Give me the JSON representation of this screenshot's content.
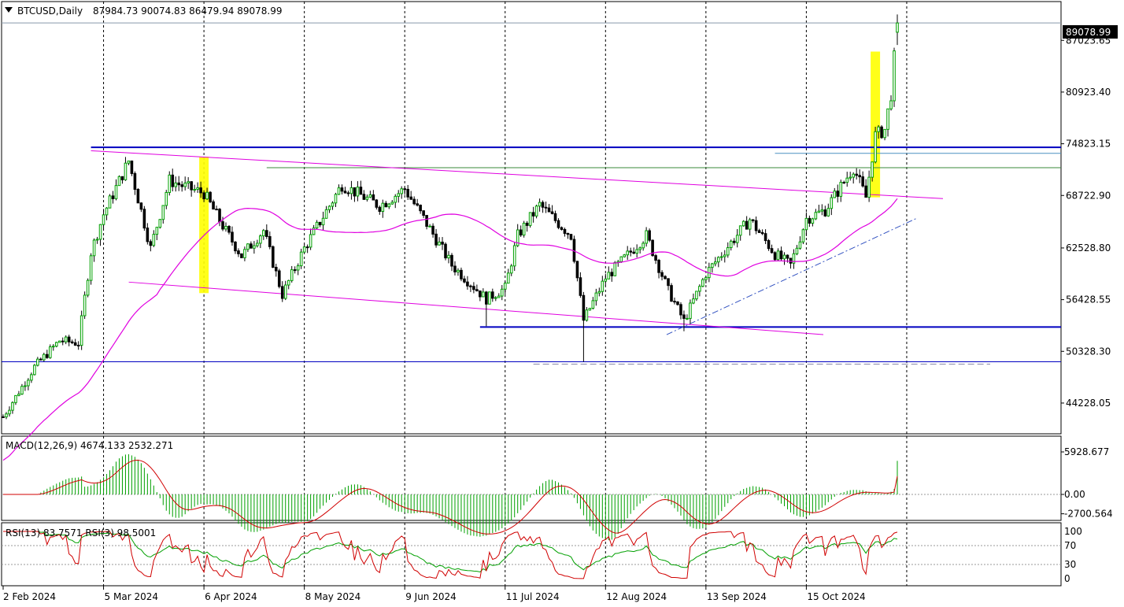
{
  "header": {
    "symbol": "BTCUSD,Daily",
    "ohlc": "87984.73 90074.83 86479.94 89078.99",
    "current_price_label": "89078.99"
  },
  "price_axis": {
    "labels": [
      "87023.65",
      "80923.40",
      "74823.15",
      "68722.90",
      "62528.80",
      "56428.55",
      "50328.30",
      "44228.05"
    ]
  },
  "macd": {
    "label": "MACD(12,26,9) 4674.133 2532.271",
    "axis_labels": [
      "5928.677",
      "0.00",
      "-2700.564"
    ]
  },
  "rsi": {
    "label": "RSI(13) 83.7571  RSI(3) 98.5001",
    "axis_labels": [
      "100",
      "70",
      "30",
      "0"
    ]
  },
  "time_axis": {
    "labels": [
      "2 Feb 2024",
      "5 Mar 2024",
      "6 Apr 2024",
      "8 May 2024",
      "9 Jun 2024",
      "11 Jul 2024",
      "12 Aug 2024",
      "13 Sep 2024",
      "15 Oct 2024"
    ]
  },
  "colors": {
    "bull_candle": "#00a000",
    "bear_candle": "#000000",
    "ma_line": "#e000e0",
    "channel": "#e000e0",
    "support": "#0000c0",
    "macd_hist": "#00a000",
    "macd_signal": "#d00000",
    "rsi13": "#00a000",
    "rsi3": "#d00000",
    "highlight": "#ffff00"
  },
  "chart_data": {
    "type": "candlestick",
    "symbol": "BTCUSD",
    "timeframe": "Daily",
    "last_bar": {
      "open": 87984.73,
      "high": 90074.83,
      "low": 86479.94,
      "close": 89078.99
    },
    "ylim": [
      40600,
      91600
    ],
    "x_labels": [
      "2 Feb 2024",
      "5 Mar 2024",
      "6 Apr 2024",
      "8 May 2024",
      "9 Jun 2024",
      "11 Jul 2024",
      "12 Aug 2024",
      "13 Sep 2024",
      "15 Oct 2024"
    ],
    "close_path": [
      [
        "2 Feb 2024",
        42600
      ],
      [
        "12 Feb 2024",
        48500
      ],
      [
        "20 Feb 2024",
        51600
      ],
      [
        "26 Feb 2024",
        51300
      ],
      [
        "1 Mar 2024",
        62000
      ],
      [
        "5 Mar 2024",
        66500
      ],
      [
        "13 Mar 2024",
        72800
      ],
      [
        "20 Mar 2024",
        62500
      ],
      [
        "26 Mar 2024",
        70500
      ],
      [
        "1 Apr 2024",
        69600
      ],
      [
        "6 Apr 2024",
        69000
      ],
      [
        "13 Apr 2024",
        64500
      ],
      [
        "18 Apr 2024",
        61600
      ],
      [
        "25 Apr 2024",
        64600
      ],
      [
        "1 May 2024",
        57000
      ],
      [
        "8 May 2024",
        62500
      ],
      [
        "20 May 2024",
        70000
      ],
      [
        "1 Jun 2024",
        67500
      ],
      [
        "9 Jun 2024",
        69500
      ],
      [
        "15 Jun 2024",
        66000
      ],
      [
        "24 Jun 2024",
        60500
      ],
      [
        "5 Jul 2024",
        56500
      ],
      [
        "11 Jul 2024",
        57800
      ],
      [
        "15 Jul 2024",
        64000
      ],
      [
        "22 Jul 2024",
        67600
      ],
      [
        "1 Aug 2024",
        64000
      ],
      [
        "5 Aug 2024",
        54000
      ],
      [
        "12 Aug 2024",
        59000
      ],
      [
        "25 Aug 2024",
        64000
      ],
      [
        "1 Sep 2024",
        57500
      ],
      [
        "6 Sep 2024",
        53900
      ],
      [
        "13 Sep 2024",
        59500
      ],
      [
        "27 Sep 2024",
        65900
      ],
      [
        "5 Oct 2024",
        61800
      ],
      [
        "10 Oct 2024",
        60500
      ],
      [
        "15 Oct 2024",
        66000
      ],
      [
        "21 Oct 2024",
        67000
      ],
      [
        "30 Oct 2024",
        72000
      ],
      [
        "3 Nov 2024",
        68500
      ],
      [
        "6 Nov 2024",
        75800
      ],
      [
        "9 Nov 2024",
        76500
      ],
      [
        "11 Nov 2024",
        80700
      ],
      [
        "13 Nov 2024",
        89079
      ]
    ],
    "horizontal_levels": [
      74400,
      73700,
      72000,
      53200,
      49100
    ],
    "macd": {
      "macd": 4674.133,
      "signal": 2532.271,
      "axis": [
        5928.677,
        0,
        -2700.564
      ]
    },
    "rsi": {
      "rsi13": 83.7571,
      "rsi3": 98.5001,
      "levels": [
        100,
        70,
        30,
        0
      ]
    }
  }
}
